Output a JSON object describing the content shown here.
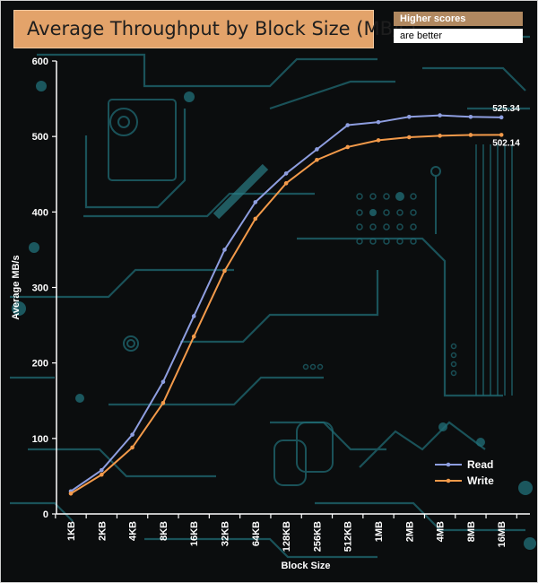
{
  "chart_data": {
    "type": "line",
    "title": "Average Throughput by Block Size (MB/s)",
    "notes": [
      "Higher scores",
      "are better"
    ],
    "xlabel": "Block Size",
    "ylabel": "Average MB/s",
    "categories": [
      "1KB",
      "2KB",
      "4KB",
      "8KB",
      "16KB",
      "32KB",
      "64KB",
      "128KB",
      "256KB",
      "512KB",
      "1MB",
      "2MB",
      "4MB",
      "8MB",
      "16MB"
    ],
    "ylim": [
      0,
      600
    ],
    "yticks": [
      0,
      100,
      200,
      300,
      400,
      500,
      600
    ],
    "grid": false,
    "legend_position": "bottom-right",
    "series": [
      {
        "name": "Read",
        "color": "#8e9ee0",
        "values": [
          30,
          58,
          105,
          175,
          262,
          350,
          413,
          451,
          483,
          515,
          519,
          526,
          528,
          526,
          525.34
        ]
      },
      {
        "name": "Write",
        "color": "#f39a4a",
        "values": [
          27,
          52,
          88,
          147,
          235,
          322,
          391,
          438,
          469,
          486,
          495,
          499,
          501,
          502,
          502.14
        ]
      }
    ],
    "annotations": [
      {
        "series": 0,
        "index": 14,
        "text": "525.34"
      },
      {
        "series": 1,
        "index": 14,
        "text": "502.14"
      }
    ]
  }
}
